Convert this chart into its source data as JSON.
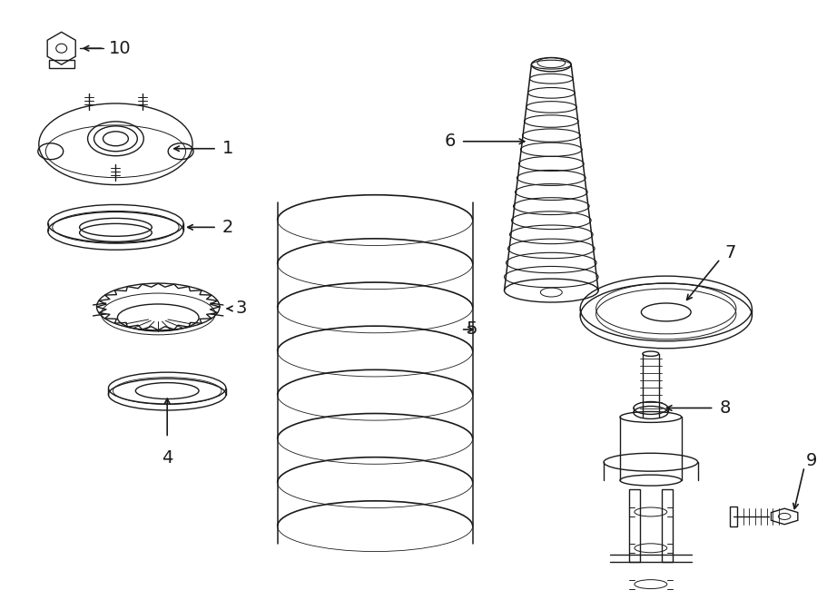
{
  "bg_color": "#ffffff",
  "line_color": "#1a1a1a",
  "lw": 1.0,
  "fig_width": 9.0,
  "fig_height": 6.61,
  "dpi": 100
}
